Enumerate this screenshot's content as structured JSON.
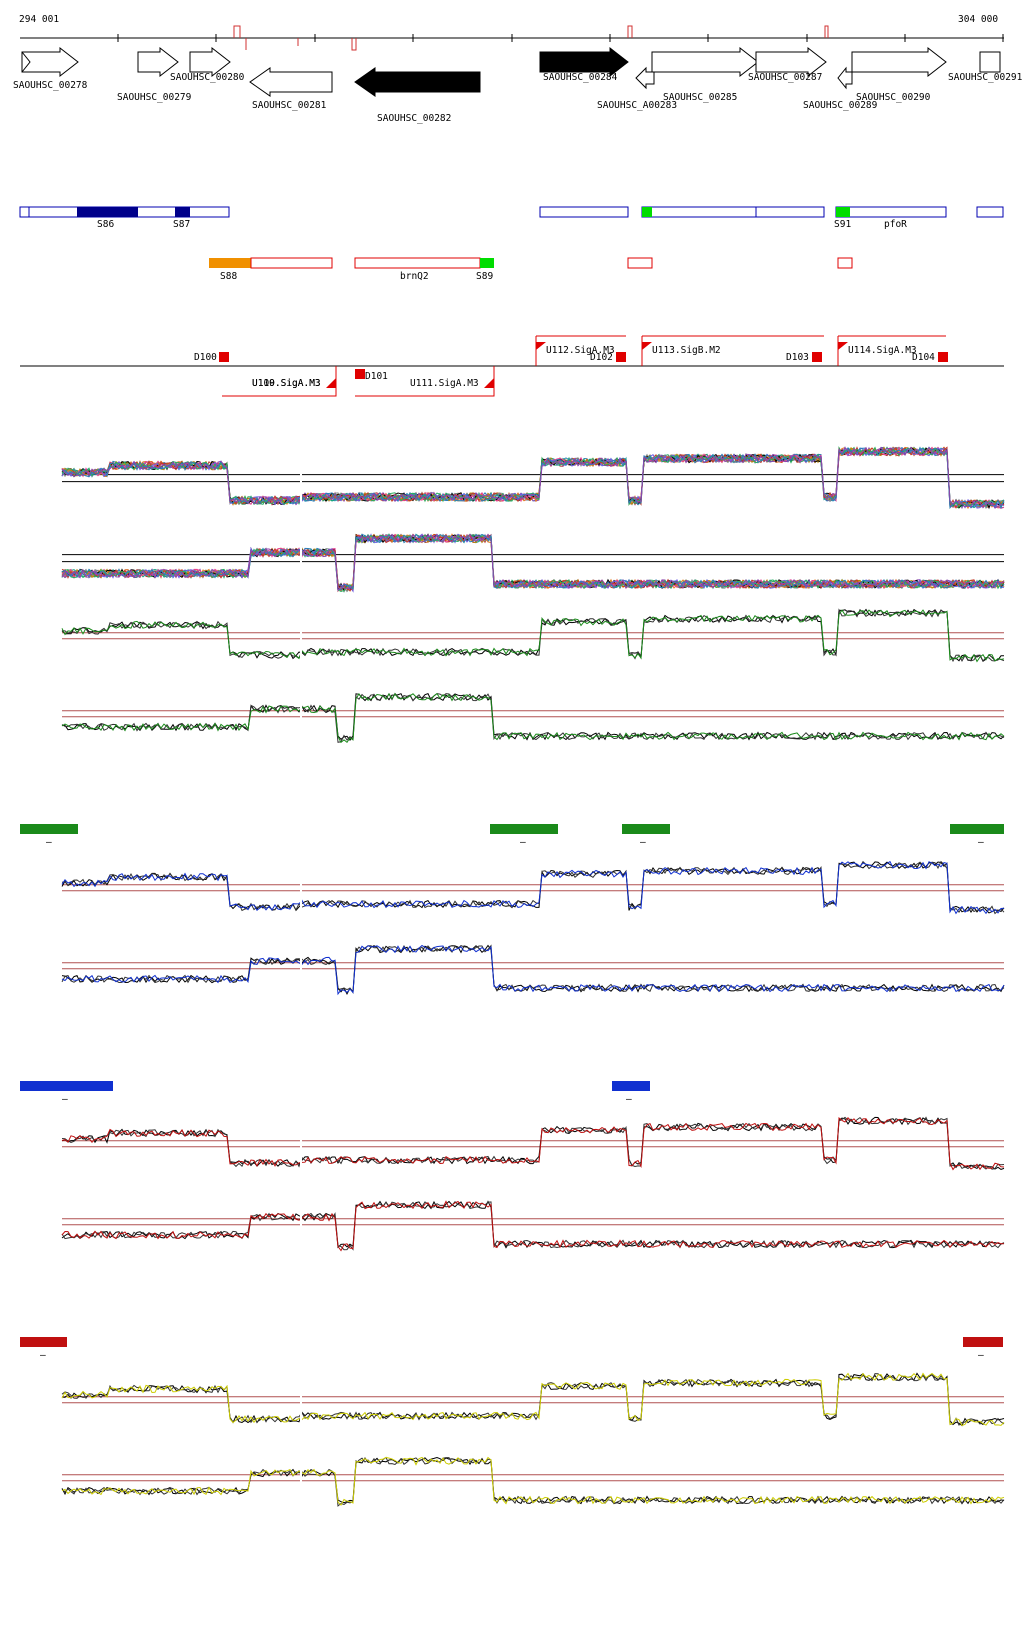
{
  "ruler": {
    "start_label": "294 001",
    "end_label": "304 000"
  },
  "genes": {
    "SAOUHSC_00278": "SAOUHSC_00278",
    "SAOUHSC_00279": "SAOUHSC_00279",
    "SAOUHSC_00280": "SAOUHSC_00280",
    "SAOUHSC_00281": "SAOUHSC_00281",
    "SAOUHSC_00282": "SAOUHSC_00282",
    "SAOUHSC_00284": "SAOUHSC_00284",
    "SAOUHSC_A00283": "SAOUHSC_A00283",
    "SAOUHSC_00285": "SAOUHSC_00285",
    "SAOUHSC_00287": "SAOUHSC_00287",
    "SAOUHSC_00289": "SAOUHSC_00289",
    "SAOUHSC_00290": "SAOUHSC_00290",
    "SAOUHSC_00291": "SAOUHSC_00291"
  },
  "segments": {
    "S86": "S86",
    "S87": "S87",
    "S88": "S88",
    "S89": "S89",
    "S91": "S91",
    "pfoR": "pfoR",
    "brnQ2": "brnQ2"
  },
  "features": {
    "D100": "D100",
    "D101": "D101",
    "D102": "D102",
    "D103": "D103",
    "D104": "D104",
    "U110": "U110.SigA.M3",
    "U109": "U109.SigA.M3",
    "U111": "U111.SigA.M3",
    "U112": "U112.SigA.M3",
    "U113": "U113.SigB.M2",
    "U114": "U114.SigA.M3"
  },
  "condition_markers": {
    "green_label": "–",
    "blue_label": "–",
    "red_label": "–"
  },
  "colors": {
    "gene_fill": "#000000",
    "segment_blue": "#0000b0",
    "segment_red": "#e00000",
    "orange": "#f09000",
    "bright_green": "#00dd00",
    "track_green": "#1a8a1a",
    "track_blue": "#1030d0",
    "track_red": "#c01010",
    "track_yellow": "#cccc00"
  }
}
